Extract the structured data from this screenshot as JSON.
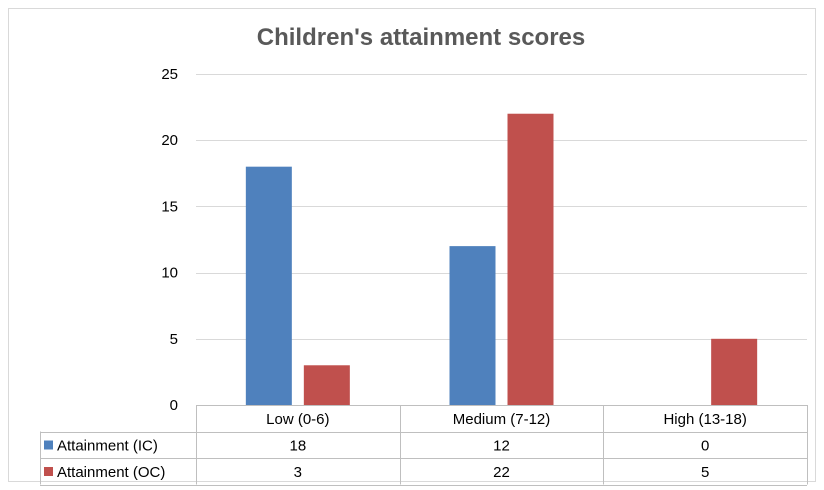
{
  "chart_data": {
    "type": "bar",
    "title": "Children's attainment scores",
    "categories": [
      "Low (0-6)",
      "Medium (7-12)",
      "High (13-18)"
    ],
    "series": [
      {
        "name": "Attainment (IC)",
        "values": [
          18,
          12,
          0
        ],
        "color": "#4F81BD"
      },
      {
        "name": "Attainment (OC)",
        "values": [
          3,
          22,
          5
        ],
        "color": "#C0504D"
      }
    ],
    "ylim": [
      0,
      25
    ],
    "yticks": [
      0,
      5,
      10,
      15,
      20,
      25
    ],
    "grid": true,
    "legend": "data-table-left",
    "xlabel": "",
    "ylabel": ""
  }
}
